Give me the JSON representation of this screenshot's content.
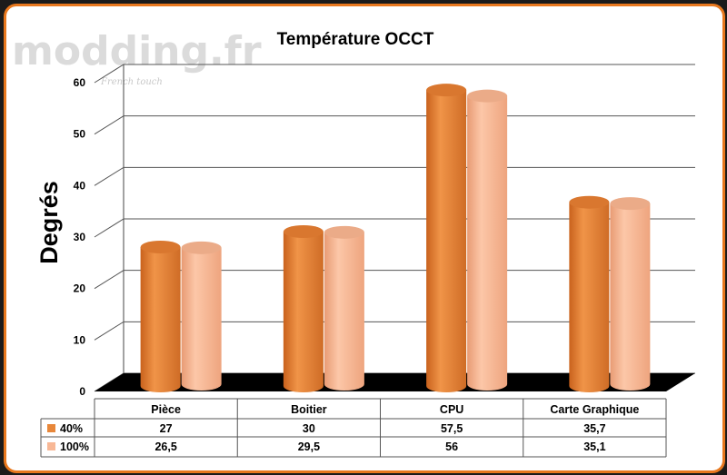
{
  "watermark": {
    "brand": "modding.fr",
    "tagline": "French touch"
  },
  "colors": {
    "series1": "#e8873a",
    "series2": "#f8b896",
    "frame": "#e8781e",
    "floor": "#000000"
  },
  "chart_data": {
    "type": "bar",
    "title": "Température OCCT",
    "ylabel": "Degrés",
    "xlabel": "",
    "ylim": [
      0,
      60
    ],
    "yticks": [
      0,
      10,
      20,
      30,
      40,
      50,
      60
    ],
    "grid": true,
    "legend": "table-left",
    "categories": [
      "Pièce",
      "Boitier",
      "CPU",
      "Carte Graphique"
    ],
    "series": [
      {
        "name": "40%",
        "values": [
          27,
          30,
          57.5,
          35.7
        ],
        "labels": [
          "27",
          "30",
          "57,5",
          "35,7"
        ]
      },
      {
        "name": "100%",
        "values": [
          26.5,
          29.5,
          56,
          35.1
        ],
        "labels": [
          "26,5",
          "29,5",
          "56",
          "35,1"
        ]
      }
    ]
  }
}
